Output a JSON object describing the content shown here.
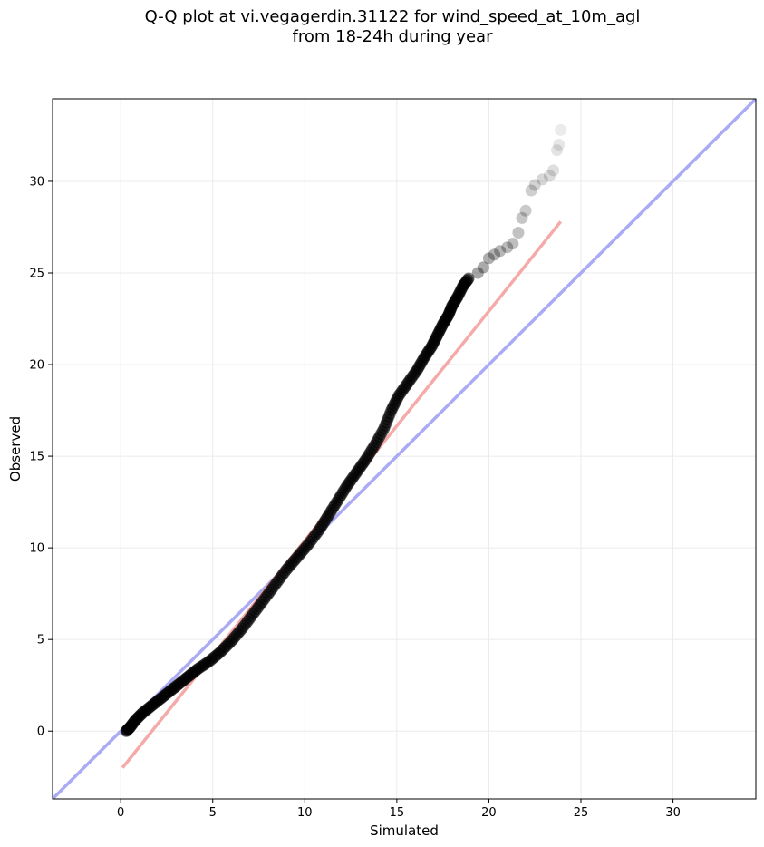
{
  "chart_data": {
    "type": "scatter",
    "title_line1": "Q-Q plot at vi.vegagerdin.31122 for wind_speed_at_10m_agl",
    "title_line2": "from 18-24h during year",
    "xlabel": "Simulated",
    "ylabel": "Observed",
    "xlim": [
      -3.7,
      34.5
    ],
    "ylim": [
      -3.7,
      34.5
    ],
    "xticks": [
      0,
      5,
      10,
      15,
      20,
      25,
      30
    ],
    "yticks": [
      0,
      5,
      10,
      15,
      20,
      25,
      30
    ],
    "grid": true,
    "identity_line": {
      "color": "#aaaaf5",
      "from": [
        -3.7,
        -3.7
      ],
      "to": [
        34.5,
        34.5
      ]
    },
    "fit_line": {
      "color": "#f5aaaa",
      "from": [
        0.1,
        -2.0
      ],
      "to": [
        23.9,
        27.8
      ]
    },
    "point_color": "#000000",
    "dense_points": [
      [
        0.3,
        0.0
      ],
      [
        0.5,
        0.2
      ],
      [
        0.8,
        0.6
      ],
      [
        1.2,
        1.0
      ],
      [
        1.7,
        1.4
      ],
      [
        2.2,
        1.8
      ],
      [
        2.7,
        2.2
      ],
      [
        3.2,
        2.6
      ],
      [
        3.7,
        3.0
      ],
      [
        4.2,
        3.4
      ],
      [
        4.8,
        3.8
      ],
      [
        5.4,
        4.3
      ],
      [
        6.0,
        4.9
      ],
      [
        6.6,
        5.6
      ],
      [
        7.2,
        6.4
      ],
      [
        7.8,
        7.2
      ],
      [
        8.4,
        8.0
      ],
      [
        9.0,
        8.8
      ],
      [
        9.6,
        9.5
      ],
      [
        10.2,
        10.2
      ],
      [
        10.8,
        11.0
      ],
      [
        11.3,
        11.8
      ],
      [
        11.8,
        12.6
      ],
      [
        12.3,
        13.4
      ],
      [
        12.8,
        14.1
      ],
      [
        13.3,
        14.8
      ],
      [
        13.8,
        15.6
      ],
      [
        14.3,
        16.5
      ],
      [
        14.7,
        17.5
      ],
      [
        15.1,
        18.3
      ],
      [
        15.6,
        19.0
      ],
      [
        16.1,
        19.7
      ],
      [
        16.5,
        20.4
      ],
      [
        16.9,
        21.0
      ],
      [
        17.2,
        21.6
      ],
      [
        17.5,
        22.2
      ],
      [
        17.8,
        22.7
      ],
      [
        18.0,
        23.2
      ],
      [
        18.3,
        23.7
      ],
      [
        18.6,
        24.3
      ],
      [
        18.9,
        24.7
      ]
    ],
    "sparse_points": [
      [
        19.4,
        25.0
      ],
      [
        19.7,
        25.3
      ],
      [
        20.0,
        25.8
      ],
      [
        20.3,
        26.0
      ],
      [
        20.6,
        26.2
      ],
      [
        21.0,
        26.4
      ],
      [
        21.3,
        26.6
      ],
      [
        21.6,
        27.2
      ],
      [
        21.8,
        28.0
      ],
      [
        22.0,
        28.4
      ],
      [
        22.3,
        29.5
      ],
      [
        22.5,
        29.8
      ],
      [
        22.9,
        30.1
      ],
      [
        23.3,
        30.3
      ],
      [
        23.5,
        30.6
      ],
      [
        23.7,
        31.7
      ],
      [
        23.8,
        32.0
      ],
      [
        23.9,
        32.8
      ]
    ]
  }
}
